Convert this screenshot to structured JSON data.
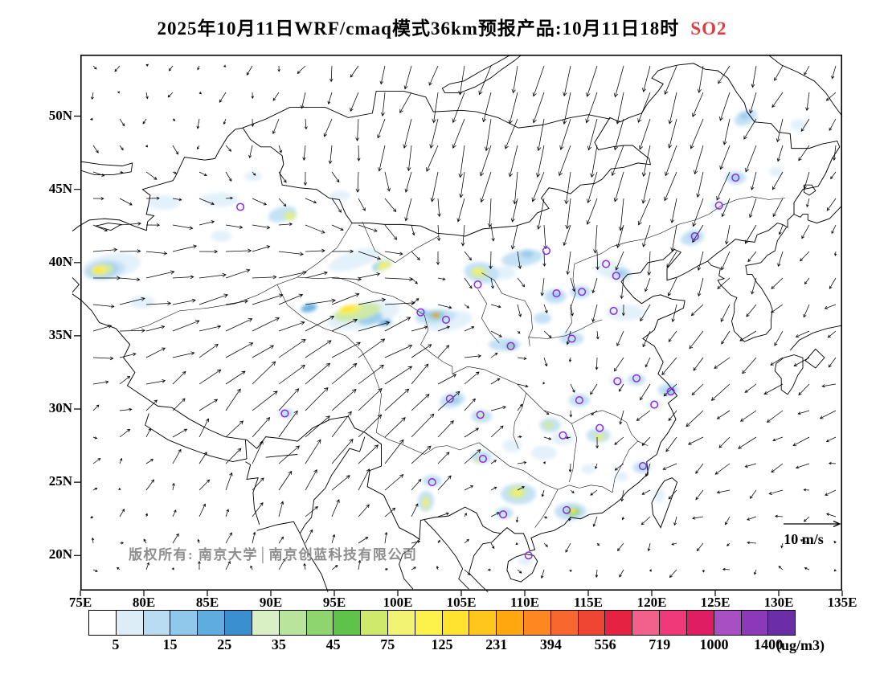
{
  "title": {
    "main": "2025年10月11日WRF/cmaq模式36km预报产品:10月11日18时",
    "species": "SO2",
    "species_color": "#e23b41"
  },
  "map": {
    "copyright": "版权所有: 南京大学│南京创蓝科技有限公司",
    "wind_scale_label": "10 m/s"
  },
  "axes": {
    "lat": [
      {
        "label": "50N",
        "deg": 50
      },
      {
        "label": "45N",
        "deg": 45
      },
      {
        "label": "40N",
        "deg": 40
      },
      {
        "label": "35N",
        "deg": 35
      },
      {
        "label": "30N",
        "deg": 30
      },
      {
        "label": "25N",
        "deg": 25
      },
      {
        "label": "20N",
        "deg": 20
      }
    ],
    "lon": [
      {
        "label": "75E",
        "deg": 75
      },
      {
        "label": "80E",
        "deg": 80
      },
      {
        "label": "85E",
        "deg": 85
      },
      {
        "label": "90E",
        "deg": 90
      },
      {
        "label": "95E",
        "deg": 95
      },
      {
        "label": "100E",
        "deg": 100
      },
      {
        "label": "105E",
        "deg": 105
      },
      {
        "label": "110E",
        "deg": 110
      },
      {
        "label": "115E",
        "deg": 115
      },
      {
        "label": "120E",
        "deg": 120
      },
      {
        "label": "125E",
        "deg": 125
      },
      {
        "label": "130E",
        "deg": 130
      },
      {
        "label": "135E",
        "deg": 135
      }
    ]
  },
  "colorbar": {
    "unit": "(ug/m3)",
    "labels": [
      "5",
      "15",
      "25",
      "35",
      "45",
      "75",
      "125",
      "231",
      "394",
      "556",
      "719",
      "1000",
      "1400"
    ],
    "colors": [
      "#ffffff",
      "#dcedf8",
      "#b9dcf2",
      "#8ec8ea",
      "#5fade0",
      "#3a8fd0",
      "#d9efc4",
      "#b9e49c",
      "#8fd56e",
      "#5ec348",
      "#cfe96a",
      "#f2f373",
      "#fdf14b",
      "#ffe32e",
      "#ffc61b",
      "#ffa70f",
      "#fd8822",
      "#f6682e",
      "#ee4633",
      "#e62243",
      "#f2608c",
      "#ee3a78",
      "#df1d63",
      "#a94fc4",
      "#8c39b8",
      "#6b2ea6"
    ]
  },
  "chart_data": {
    "type": "heatmap",
    "title": "2025年10月11日WRF/cmaq模式36km预报产品:10月11日18时 SO2",
    "species": "SO2",
    "unit": "ug/m3",
    "lon_range": [
      75,
      135
    ],
    "lat_range": [
      17.6,
      54.2
    ],
    "lat_ticks": [
      50,
      45,
      40,
      35,
      30,
      25,
      20
    ],
    "lon_ticks": [
      75,
      80,
      85,
      90,
      95,
      100,
      105,
      110,
      115,
      120,
      125,
      130,
      135
    ],
    "value_ticks": [
      5,
      15,
      25,
      35,
      45,
      75,
      125,
      231,
      394,
      556,
      719,
      1000,
      1400
    ],
    "wind_legend_speed": "10 m/s",
    "city_marker_color": "#8a2be2",
    "cities": [
      [
        87.6,
        43.8
      ],
      [
        111.7,
        40.8
      ],
      [
        116.4,
        39.9
      ],
      [
        117.2,
        39.1
      ],
      [
        114.5,
        38.0
      ],
      [
        112.5,
        37.9
      ],
      [
        117.0,
        36.7
      ],
      [
        113.7,
        34.8
      ],
      [
        108.9,
        34.3
      ],
      [
        106.3,
        38.5
      ],
      [
        103.8,
        36.1
      ],
      [
        101.8,
        36.6
      ],
      [
        104.1,
        30.7
      ],
      [
        106.5,
        29.6
      ],
      [
        106.7,
        26.6
      ],
      [
        102.7,
        25.0
      ],
      [
        108.3,
        22.8
      ],
      [
        110.3,
        20.0
      ],
      [
        113.3,
        23.1
      ],
      [
        113.0,
        28.2
      ],
      [
        114.3,
        30.6
      ],
      [
        115.9,
        28.7
      ],
      [
        117.3,
        31.9
      ],
      [
        118.8,
        32.1
      ],
      [
        121.5,
        31.2
      ],
      [
        120.2,
        30.3
      ],
      [
        119.3,
        26.1
      ],
      [
        91.1,
        29.7
      ],
      [
        126.6,
        45.8
      ],
      [
        125.3,
        43.9
      ],
      [
        123.4,
        41.8
      ]
    ],
    "blob_palette": {
      "b0": "#e3f1fb",
      "b1": "#c4e1f5",
      "b2": "#9bcdec",
      "b3": "#6cb2e0",
      "g1": "#cde9a9",
      "g2": "#8fd266",
      "y1": "#f7ef5e",
      "y2": "#ffe234",
      "o1": "#ff9f2a",
      "r1": "#e93a3a"
    },
    "hotspots": [
      [
        77.5,
        39.8,
        36,
        15,
        -8,
        "b0"
      ],
      [
        81.6,
        44.1,
        20,
        9,
        0,
        "b0"
      ],
      [
        86.0,
        44.3,
        24,
        9,
        0,
        "b0"
      ],
      [
        88.6,
        45.9,
        11,
        6,
        0,
        "b0"
      ],
      [
        79.9,
        37.3,
        16,
        8,
        0,
        "b0"
      ],
      [
        86.1,
        41.8,
        13,
        7,
        0,
        "b0"
      ],
      [
        96.6,
        40.2,
        34,
        11,
        -18,
        "b0"
      ],
      [
        97.3,
        36.4,
        46,
        16,
        -12,
        "b0"
      ],
      [
        108.4,
        39.3,
        14,
        8,
        0,
        "b0"
      ],
      [
        116.9,
        39.5,
        24,
        11,
        15,
        "b0"
      ],
      [
        117.9,
        36.6,
        24,
        10,
        0,
        "b0"
      ],
      [
        113.0,
        28.0,
        14,
        8,
        0,
        "b0"
      ],
      [
        115.0,
        25.9,
        9,
        6,
        0,
        "b0"
      ],
      [
        117.6,
        25.4,
        9,
        6,
        0,
        "b0"
      ],
      [
        120.2,
        30.3,
        10,
        6,
        0,
        "b0"
      ],
      [
        117.3,
        31.9,
        10,
        6,
        0,
        "b0"
      ],
      [
        125.3,
        43.9,
        11,
        7,
        0,
        "b0"
      ],
      [
        131.6,
        49.4,
        11,
        7,
        0,
        "b0"
      ],
      [
        129.8,
        46.2,
        9,
        6,
        0,
        "b0"
      ],
      [
        120.6,
        24.1,
        7,
        9,
        0,
        "b0"
      ],
      [
        110.0,
        19.6,
        9,
        5,
        0,
        "b0"
      ],
      [
        95.5,
        44.6,
        12,
        6,
        0,
        "b0"
      ],
      [
        104.0,
        36.0,
        30,
        12,
        -10,
        "b0"
      ],
      [
        111.5,
        27.0,
        16,
        9,
        0,
        "b0"
      ],
      [
        109.0,
        27.5,
        12,
        8,
        0,
        "b0"
      ],
      [
        90.9,
        43.3,
        18,
        9,
        -15,
        "b1"
      ],
      [
        103.0,
        36.3,
        26,
        9,
        -5,
        "b1"
      ],
      [
        106.6,
        39.3,
        22,
        13,
        10,
        "b1"
      ],
      [
        109.8,
        40.3,
        26,
        10,
        -8,
        "b1"
      ],
      [
        112.4,
        37.7,
        14,
        9,
        0,
        "b1"
      ],
      [
        111.4,
        36.2,
        11,
        7,
        0,
        "b1"
      ],
      [
        114.4,
        38.0,
        13,
        8,
        0,
        "b1"
      ],
      [
        117.6,
        39.2,
        12,
        7,
        0,
        "b1"
      ],
      [
        113.7,
        34.8,
        15,
        8,
        0,
        "b1"
      ],
      [
        108.4,
        34.4,
        20,
        8,
        0,
        "b1"
      ],
      [
        104.3,
        30.6,
        16,
        9,
        -15,
        "b1"
      ],
      [
        106.6,
        29.5,
        13,
        8,
        0,
        "b1"
      ],
      [
        106.6,
        26.7,
        13,
        8,
        0,
        "b1"
      ],
      [
        102.7,
        25.1,
        12,
        7,
        0,
        "b1"
      ],
      [
        102.2,
        23.7,
        10,
        13,
        5,
        "b1"
      ],
      [
        109.5,
        24.2,
        22,
        13,
        0,
        "b1"
      ],
      [
        108.4,
        22.9,
        11,
        7,
        0,
        "b1"
      ],
      [
        113.6,
        23.0,
        20,
        11,
        0,
        "b1"
      ],
      [
        112.0,
        28.9,
        13,
        9,
        0,
        "b1"
      ],
      [
        114.3,
        30.6,
        13,
        8,
        0,
        "b1"
      ],
      [
        115.8,
        28.2,
        15,
        9,
        0,
        "b1"
      ],
      [
        119.2,
        26.0,
        11,
        7,
        0,
        "b1"
      ],
      [
        121.3,
        31.3,
        13,
        8,
        0,
        "b1"
      ],
      [
        118.8,
        32.0,
        11,
        7,
        0,
        "b1"
      ],
      [
        123.2,
        41.7,
        15,
        9,
        -15,
        "b1"
      ],
      [
        126.6,
        45.8,
        13,
        8,
        0,
        "b1"
      ],
      [
        127.4,
        49.9,
        15,
        9,
        -25,
        "b1"
      ],
      [
        91.2,
        29.7,
        9,
        6,
        0,
        "b1"
      ],
      [
        76.9,
        39.5,
        26,
        12,
        -8,
        "b1"
      ],
      [
        76.8,
        39.5,
        18,
        9,
        -8,
        "b2"
      ],
      [
        98.7,
        39.8,
        12,
        6,
        -20,
        "b2"
      ],
      [
        97.8,
        36.2,
        16,
        8,
        -12,
        "b2"
      ],
      [
        110.2,
        40.6,
        8,
        5,
        0,
        "b2"
      ],
      [
        117.6,
        39.3,
        6,
        4,
        0,
        "b2"
      ],
      [
        112.5,
        37.8,
        6,
        4,
        0,
        "b2"
      ],
      [
        108.9,
        34.3,
        8,
        4.5,
        0,
        "b2"
      ],
      [
        123.3,
        41.8,
        6,
        4,
        0,
        "b2"
      ],
      [
        126.6,
        45.8,
        5,
        3.5,
        0,
        "b2"
      ],
      [
        127.3,
        50.0,
        6,
        4,
        0,
        "b2"
      ],
      [
        104.5,
        30.6,
        6,
        4,
        0,
        "b2"
      ],
      [
        121.4,
        31.2,
        6,
        4,
        0,
        "b2"
      ],
      [
        119.3,
        26.0,
        4.5,
        3,
        0,
        "b2"
      ],
      [
        103.0,
        36.4,
        12,
        6,
        0,
        "b2"
      ],
      [
        102.0,
        36.6,
        6,
        4,
        0,
        "b2"
      ],
      [
        93.0,
        36.9,
        10,
        5,
        -12,
        "b3"
      ],
      [
        99.0,
        35.9,
        8,
        4,
        -12,
        "b3"
      ],
      [
        76.7,
        39.5,
        15,
        7.5,
        -8,
        "g1"
      ],
      [
        91.5,
        43.2,
        8,
        6,
        0,
        "g1"
      ],
      [
        98.9,
        39.8,
        11,
        5.5,
        -20,
        "g1"
      ],
      [
        96.8,
        36.6,
        30,
        10,
        -12,
        "g1"
      ],
      [
        106.4,
        39.3,
        11,
        7,
        0,
        "g1"
      ],
      [
        102.2,
        23.6,
        5,
        9,
        5,
        "g1"
      ],
      [
        109.4,
        24.3,
        12,
        8,
        0,
        "g1"
      ],
      [
        111.9,
        28.9,
        7,
        5,
        0,
        "g1"
      ],
      [
        115.9,
        28.1,
        8,
        5,
        0,
        "g1"
      ],
      [
        106.3,
        26.5,
        5,
        3.5,
        0,
        "g1"
      ],
      [
        106.6,
        29.5,
        5,
        3.5,
        0,
        "g1"
      ],
      [
        113.8,
        23.0,
        9,
        5.5,
        0,
        "g2"
      ],
      [
        103.0,
        36.4,
        7,
        4,
        0,
        "g2"
      ],
      [
        108.9,
        34.3,
        4,
        2.6,
        0,
        "g2"
      ],
      [
        76.5,
        39.5,
        9,
        5,
        -8,
        "y1"
      ],
      [
        91.5,
        43.2,
        4,
        3,
        0,
        "y1"
      ],
      [
        98.9,
        39.8,
        6,
        3.5,
        -20,
        "y1"
      ],
      [
        96.2,
        36.8,
        14,
        5.5,
        -12,
        "y1"
      ],
      [
        106.3,
        39.4,
        6,
        4,
        0,
        "y1"
      ],
      [
        102.2,
        23.6,
        2.8,
        5.5,
        5,
        "y1"
      ],
      [
        109.4,
        24.3,
        6,
        4.5,
        0,
        "y1"
      ],
      [
        113.8,
        23.05,
        4,
        2.8,
        0,
        "y1"
      ],
      [
        115.9,
        28.1,
        3.5,
        2.5,
        0,
        "y1"
      ],
      [
        76.4,
        39.5,
        5,
        3,
        -8,
        "y2"
      ],
      [
        96.0,
        36.85,
        8,
        3.5,
        -12,
        "y2"
      ],
      [
        103.0,
        36.4,
        3.4,
        2.6,
        0,
        "o1"
      ],
      [
        103.0,
        36.4,
        1.9,
        1.5,
        0,
        "r1"
      ]
    ]
  }
}
